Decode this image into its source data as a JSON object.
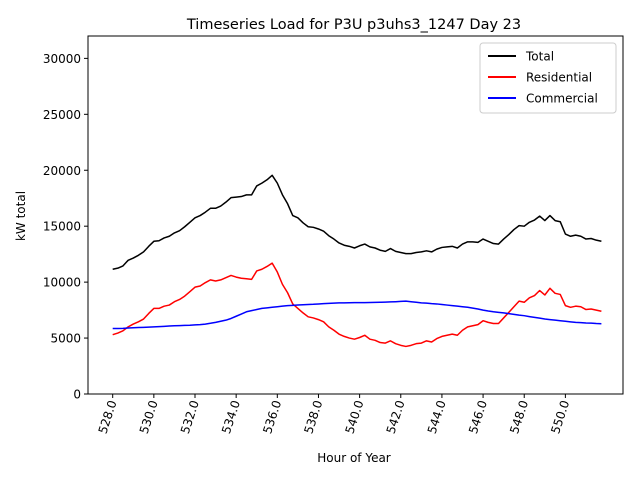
{
  "chart_data": {
    "type": "line",
    "title": "Timeseries Load for P3U p3uhs3_1247  Day 23",
    "xlabel": "Hour of Year",
    "ylabel": "kW total",
    "xlim": [
      526.8,
      552.8
    ],
    "ylim": [
      0,
      32000
    ],
    "xticks": [
      528,
      530,
      532,
      534,
      536,
      538,
      540,
      542,
      544,
      546,
      548,
      550
    ],
    "xtick_labels": [
      "528.0",
      "530.0",
      "532.0",
      "534.0",
      "536.0",
      "538.0",
      "540.0",
      "542.0",
      "544.0",
      "546.0",
      "548.0",
      "550.0"
    ],
    "yticks": [
      0,
      5000,
      10000,
      15000,
      20000,
      25000,
      30000
    ],
    "ytick_labels": [
      "0",
      "5000",
      "10000",
      "15000",
      "20000",
      "25000",
      "30000"
    ],
    "grid": false,
    "legend": "top-right",
    "x_start": 528,
    "x_step": 0.25,
    "series": [
      {
        "name": "Total",
        "color": "#000000",
        "values": [
          11150,
          11250,
          11450,
          11950,
          12150,
          12400,
          12700,
          13200,
          13650,
          13700,
          13950,
          14100,
          14400,
          14600,
          14950,
          15350,
          15750,
          15950,
          16250,
          16600,
          16600,
          16800,
          17150,
          17550,
          17600,
          17650,
          17800,
          17800,
          18600,
          18850,
          19150,
          19550,
          18850,
          17800,
          17000,
          15950,
          15750,
          15300,
          14950,
          14900,
          14750,
          14550,
          14150,
          13850,
          13500,
          13300,
          13200,
          13050,
          13250,
          13400,
          13150,
          13050,
          12850,
          12750,
          13000,
          12750,
          12650,
          12550,
          12550,
          12650,
          12700,
          12800,
          12700,
          12950,
          13100,
          13150,
          13200,
          13050,
          13400,
          13600,
          13600,
          13550,
          13850,
          13650,
          13450,
          13400,
          13850,
          14250,
          14700,
          15050,
          15000,
          15350,
          15550,
          15900,
          15500,
          15950,
          15500,
          15400,
          14300,
          14100,
          14200,
          14100,
          13850,
          13900,
          13750,
          13650
        ]
      },
      {
        "name": "Residential",
        "color": "#ff0000",
        "values": [
          5300,
          5450,
          5650,
          6000,
          6250,
          6450,
          6700,
          7200,
          7650,
          7650,
          7850,
          7950,
          8250,
          8450,
          8750,
          9150,
          9550,
          9650,
          9950,
          10200,
          10100,
          10200,
          10400,
          10600,
          10450,
          10350,
          10300,
          10250,
          11000,
          11150,
          11400,
          11700,
          10900,
          9800,
          9050,
          8050,
          7650,
          7250,
          6900,
          6800,
          6650,
          6450,
          6000,
          5700,
          5350,
          5150,
          5000,
          4900,
          5050,
          5250,
          4900,
          4800,
          4600,
          4550,
          4750,
          4500,
          4350,
          4250,
          4350,
          4500,
          4550,
          4750,
          4650,
          4950,
          5150,
          5250,
          5350,
          5250,
          5700,
          6000,
          6100,
          6200,
          6550,
          6400,
          6300,
          6300,
          6800,
          7300,
          7800,
          8300,
          8200,
          8600,
          8800,
          9250,
          8850,
          9450,
          9000,
          8900,
          7900,
          7750,
          7850,
          7800,
          7550,
          7600,
          7500,
          7400
        ]
      },
      {
        "name": "Commercial",
        "color": "#0000ff",
        "values": [
          5850,
          5850,
          5870,
          5900,
          5920,
          5940,
          5960,
          5980,
          6000,
          6020,
          6050,
          6080,
          6100,
          6110,
          6130,
          6150,
          6180,
          6200,
          6250,
          6320,
          6400,
          6500,
          6600,
          6750,
          6950,
          7150,
          7350,
          7450,
          7550,
          7650,
          7700,
          7750,
          7800,
          7850,
          7900,
          7920,
          7950,
          7980,
          8000,
          8020,
          8050,
          8080,
          8100,
          8120,
          8140,
          8150,
          8160,
          8170,
          8170,
          8170,
          8180,
          8190,
          8200,
          8210,
          8230,
          8250,
          8280,
          8300,
          8250,
          8200,
          8150,
          8120,
          8080,
          8050,
          8000,
          7950,
          7900,
          7850,
          7800,
          7750,
          7680,
          7600,
          7500,
          7420,
          7350,
          7300,
          7250,
          7180,
          7120,
          7050,
          7000,
          6920,
          6850,
          6780,
          6700,
          6650,
          6600,
          6550,
          6500,
          6450,
          6400,
          6380,
          6350,
          6330,
          6300,
          6280
        ]
      }
    ]
  }
}
